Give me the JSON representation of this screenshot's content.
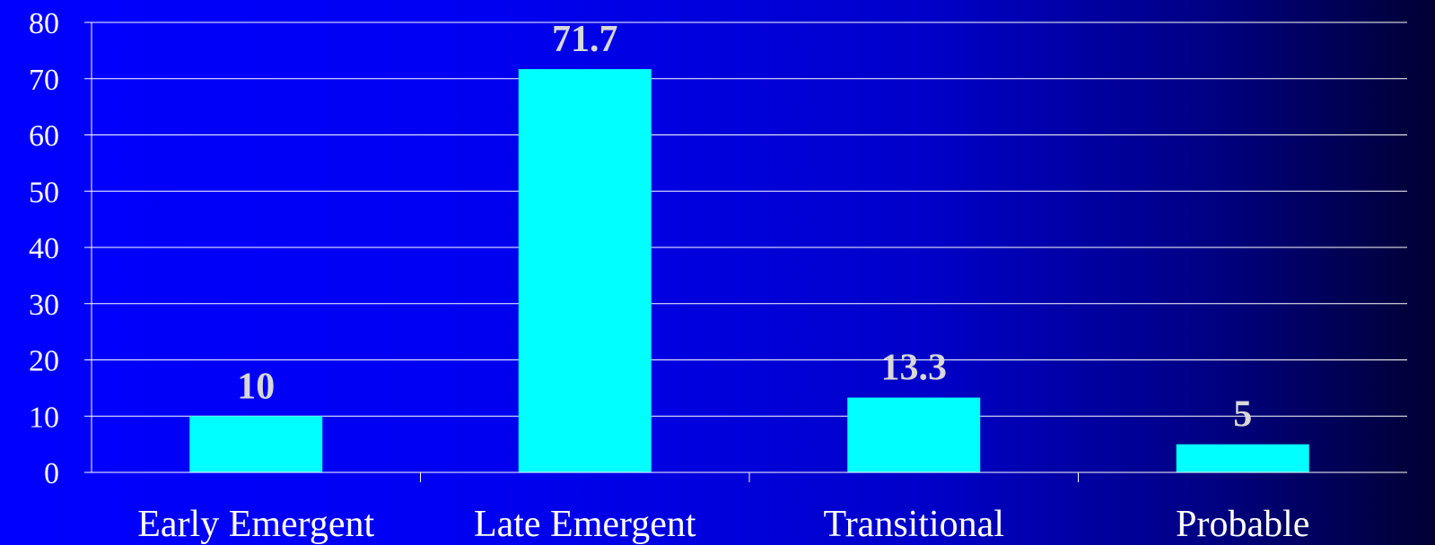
{
  "chart_data": {
    "type": "bar",
    "title": "",
    "xlabel": "",
    "ylabel": "",
    "categories": [
      "Early Emergent",
      "Late Emergent",
      "Transitional",
      "Probable"
    ],
    "values": [
      10,
      71.7,
      13.3,
      5
    ],
    "value_labels": [
      "10",
      "71.7",
      "13.3",
      "5"
    ],
    "ylim": [
      0,
      80
    ],
    "yticks": [
      0,
      10,
      20,
      30,
      40,
      50,
      60,
      70,
      80
    ],
    "ytick_labels": [
      "0",
      "10",
      "20",
      "30",
      "40",
      "50",
      "60",
      "70",
      "80"
    ],
    "grid": true,
    "legend": "none",
    "colors": {
      "bar": "#00ffff",
      "gridline": "#ffffff",
      "text": "#ffffff",
      "data_label": "#d8d8d8",
      "background_start": "#0000ff",
      "background_end": "#000033"
    }
  }
}
